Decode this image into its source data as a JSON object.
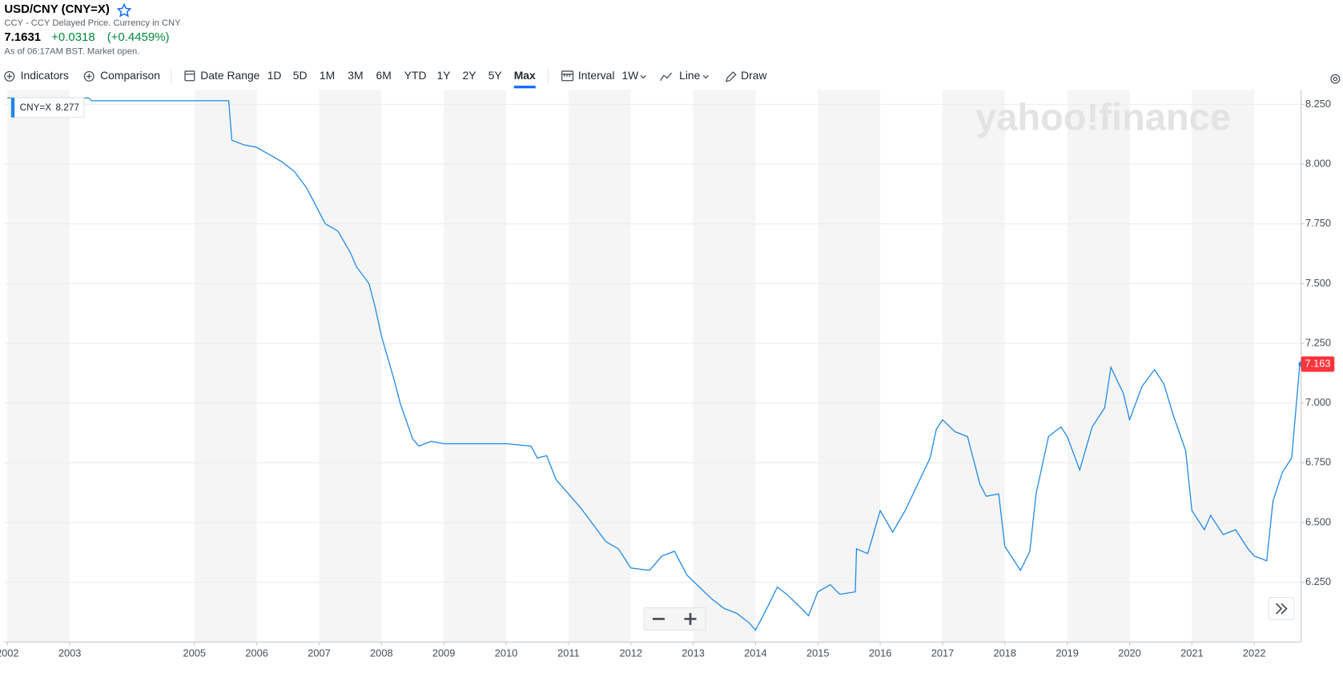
{
  "header": {
    "title": "USD/CNY (CNY=X)",
    "subtitle": "CCY - CCY Delayed Price. Currency in CNY",
    "price": "7.1631",
    "change": "+0.0318",
    "change_percent": "(+0.4459%)",
    "timestamp": "As of 06:17AM BST. Market open."
  },
  "toolbar": {
    "indicators": "Indicators",
    "comparison": "Comparison",
    "date_range": "Date Range",
    "ranges": [
      "1D",
      "5D",
      "1M",
      "3M",
      "6M",
      "YTD",
      "1Y",
      "2Y",
      "5Y",
      "Max"
    ],
    "interval_label": "Interval",
    "interval_value": "1W",
    "chart_type": "Line",
    "draw": "Draw"
  },
  "chart_data": {
    "type": "line",
    "watermark": "yahoo!finance",
    "x": [
      2002.0,
      2003.3,
      2003.35,
      2005.55,
      2005.6,
      2005.8,
      2006.0,
      2006.2,
      2006.4,
      2006.6,
      2006.8,
      2007.0,
      2007.1,
      2007.3,
      2007.5,
      2007.6,
      2007.8,
      2007.9,
      2008.0,
      2008.2,
      2008.3,
      2008.5,
      2008.6,
      2008.8,
      2009.0,
      2009.5,
      2010.0,
      2010.4,
      2010.5,
      2010.65,
      2010.8,
      2011.0,
      2011.2,
      2011.4,
      2011.6,
      2011.8,
      2012.0,
      2012.3,
      2012.5,
      2012.7,
      2012.9,
      2013.1,
      2013.3,
      2013.5,
      2013.7,
      2013.9,
      2014.0,
      2014.2,
      2014.35,
      2014.5,
      2014.7,
      2014.85,
      2015.0,
      2015.2,
      2015.35,
      2015.6,
      2015.62,
      2015.8,
      2016.0,
      2016.2,
      2016.4,
      2016.6,
      2016.8,
      2016.9,
      2017.0,
      2017.2,
      2017.4,
      2017.6,
      2017.7,
      2017.9,
      2018.0,
      2018.25,
      2018.4,
      2018.5,
      2018.7,
      2018.9,
      2019.0,
      2019.2,
      2019.4,
      2019.6,
      2019.7,
      2019.9,
      2020.0,
      2020.2,
      2020.4,
      2020.55,
      2020.7,
      2020.9,
      2021.0,
      2021.2,
      2021.3,
      2021.5,
      2021.7,
      2021.9,
      2022.0,
      2022.2,
      2022.3,
      2022.45,
      2022.6,
      2022.73
    ],
    "series": [
      {
        "name": "CNY=X",
        "color": "#1e88e5",
        "values": [
          8.277,
          8.277,
          8.265,
          8.265,
          8.1,
          8.08,
          8.07,
          8.04,
          8.01,
          7.97,
          7.9,
          7.8,
          7.75,
          7.72,
          7.63,
          7.57,
          7.5,
          7.4,
          7.28,
          7.1,
          7.0,
          6.85,
          6.82,
          6.84,
          6.83,
          6.83,
          6.83,
          6.82,
          6.77,
          6.78,
          6.68,
          6.62,
          6.56,
          6.49,
          6.42,
          6.39,
          6.31,
          6.3,
          6.36,
          6.38,
          6.28,
          6.23,
          6.18,
          6.14,
          6.12,
          6.08,
          6.05,
          6.15,
          6.23,
          6.2,
          6.15,
          6.11,
          6.21,
          6.24,
          6.2,
          6.21,
          6.39,
          6.37,
          6.55,
          6.46,
          6.55,
          6.66,
          6.77,
          6.89,
          6.93,
          6.88,
          6.86,
          6.66,
          6.61,
          6.62,
          6.4,
          6.3,
          6.38,
          6.62,
          6.86,
          6.9,
          6.86,
          6.72,
          6.9,
          6.98,
          7.15,
          7.04,
          6.93,
          7.07,
          7.14,
          7.08,
          6.95,
          6.8,
          6.55,
          6.47,
          6.53,
          6.45,
          6.47,
          6.39,
          6.36,
          6.34,
          6.59,
          6.71,
          6.77,
          7.163
        ]
      }
    ],
    "legend_value": 8.277,
    "last_price": 7.163,
    "last_price_color": "#ff333a",
    "xlim": [
      2001.95,
      2022.75
    ],
    "xticks": [
      2002,
      2003,
      2005,
      2006,
      2007,
      2008,
      2009,
      2010,
      2011,
      2012,
      2013,
      2014,
      2015,
      2016,
      2017,
      2018,
      2019,
      2020,
      2021,
      2022
    ],
    "ylim": [
      6.0,
      8.31
    ],
    "yticks": [
      {
        "value": 6.25,
        "label": "6.250"
      },
      {
        "value": 6.5,
        "label": "6.500"
      },
      {
        "value": 6.75,
        "label": "6.750"
      },
      {
        "value": 7,
        "label": "7.000"
      },
      {
        "value": 7.25,
        "label": "7.250"
      },
      {
        "value": 7.5,
        "label": "7.500"
      },
      {
        "value": 7.75,
        "label": "7.750"
      },
      {
        "value": 8,
        "label": "8.000"
      },
      {
        "value": 8.25,
        "label": "8.250"
      }
    ],
    "grid": true,
    "year_bands": true
  }
}
